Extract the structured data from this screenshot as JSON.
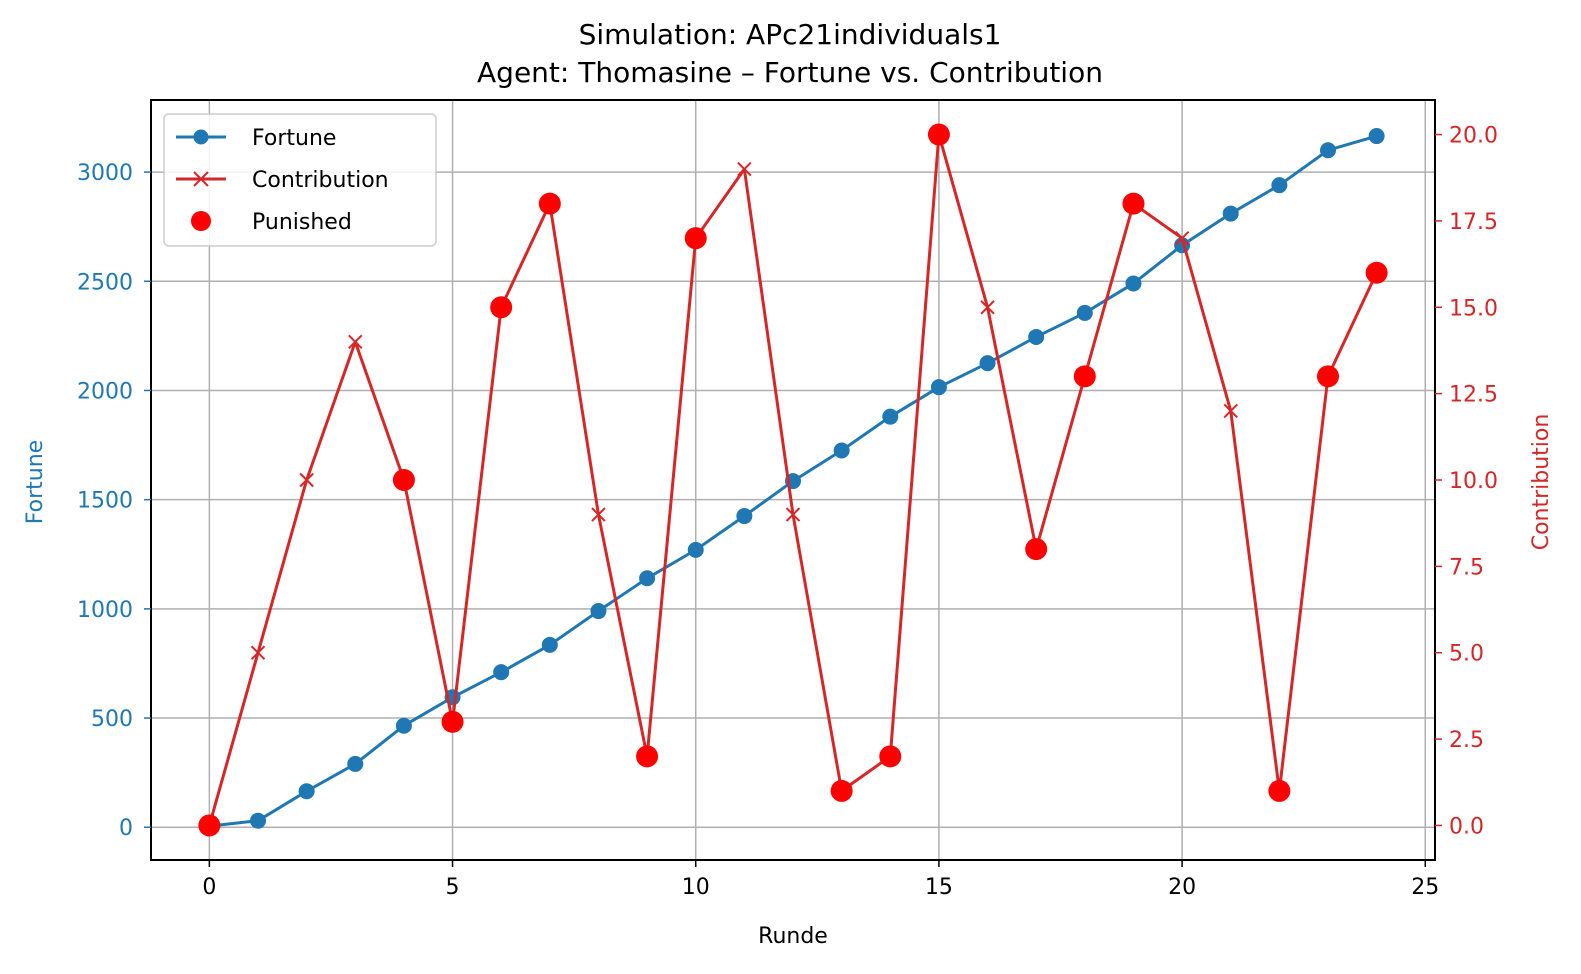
{
  "chart_data": {
    "type": "line",
    "title": "Simulation: APc21individuals1",
    "subtitle": "Agent: Thomasine – Fortune vs. Contribution",
    "xlabel": "Runde",
    "ylabel": "Fortune",
    "y2label": "Contribution",
    "xlim": [
      -1.2,
      25.2
    ],
    "ylim": [
      -150,
      3330
    ],
    "y2lim": [
      -1.0,
      21.0
    ],
    "xticks": [
      0,
      5,
      10,
      15,
      20,
      25
    ],
    "yticks": [
      0,
      500,
      1000,
      1500,
      2000,
      2500,
      3000
    ],
    "y2ticks": [
      "0.0",
      "2.5",
      "5.0",
      "7.5",
      "10.0",
      "12.5",
      "15.0",
      "17.5",
      "20.0"
    ],
    "grid": true,
    "legend_position": "top-left",
    "colors": {
      "fortune": "#1f77b4",
      "contribution": "#d62728",
      "punished": "#ff0000"
    },
    "x": [
      0,
      1,
      2,
      3,
      4,
      5,
      6,
      7,
      8,
      9,
      10,
      11,
      12,
      13,
      14,
      15,
      16,
      17,
      18,
      19,
      20,
      21,
      22,
      23,
      24
    ],
    "series": [
      {
        "name": "Fortune",
        "axis": "left",
        "marker": "circle",
        "values": [
          5,
          30,
          165,
          290,
          465,
          595,
          710,
          835,
          990,
          1140,
          1270,
          1425,
          1585,
          1725,
          1880,
          2015,
          2125,
          2245,
          2355,
          2490,
          2665,
          2810,
          2940,
          3100,
          3165
        ]
      },
      {
        "name": "Contribution",
        "axis": "right",
        "marker": "x",
        "values": [
          0,
          5,
          10,
          14,
          10,
          3,
          15,
          18,
          9,
          2,
          17,
          19,
          9,
          1,
          2,
          20,
          15,
          8,
          13,
          18,
          17,
          12,
          1,
          13,
          16
        ]
      }
    ],
    "punished_name": "Punished",
    "punished_rounds": [
      0,
      4,
      5,
      6,
      7,
      9,
      10,
      13,
      14,
      15,
      17,
      18,
      19,
      22,
      23,
      24
    ]
  }
}
